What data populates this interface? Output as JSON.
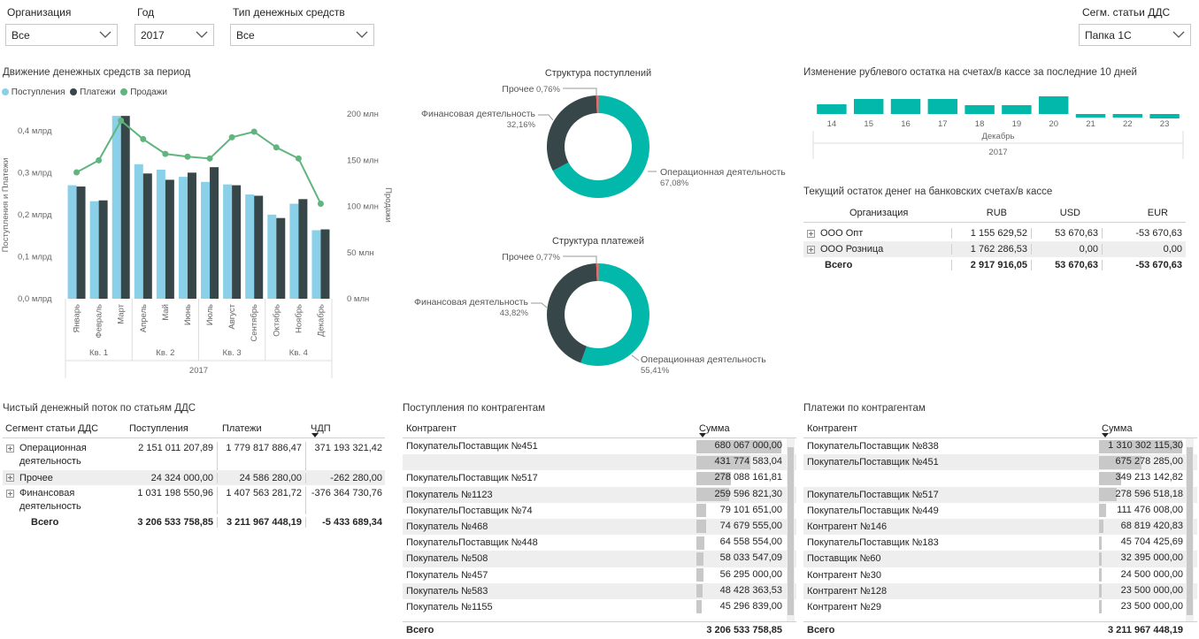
{
  "slicers": {
    "org": {
      "label": "Организация",
      "value": "Все"
    },
    "year": {
      "label": "Год",
      "value": "2017"
    },
    "cash_type": {
      "label": "Тип денежных средств",
      "value": "Все"
    },
    "segment": {
      "label": "Сегм. статьи ДДС",
      "value": "Папка 1С"
    }
  },
  "cashflow_chart": {
    "title": "Движение денежных средств за период",
    "legend": [
      "Поступления",
      "Платежи",
      "Продажи"
    ],
    "colors": {
      "inflow": "#89d0e8",
      "outflow": "#374649",
      "sales": "#5fb57d"
    },
    "y_left_label": "Поступления и Платежи",
    "y_right_label": "Продажи",
    "y_left_ticks": [
      "0,4 млрд",
      "0,3 млрд",
      "0,2 млрд",
      "0,1 млрд",
      "0,0 млрд"
    ],
    "y_right_ticks": [
      "200 млн",
      "150 млн",
      "100 млн",
      "50 млн",
      "0 млн"
    ],
    "quarters": [
      "Кв. 1",
      "Кв. 2",
      "Кв. 3",
      "Кв. 4"
    ],
    "year": "2017"
  },
  "chart_data": [
    {
      "type": "bar",
      "title": "Движение денежных средств за период",
      "categories": [
        "Январь",
        "Февраль",
        "Март",
        "Апрель",
        "Май",
        "Июнь",
        "Июль",
        "Август",
        "Сентябрь",
        "Октябрь",
        "Ноябрь",
        "Декабрь"
      ],
      "series": [
        {
          "name": "Поступления",
          "axis": "left",
          "unit": "млрд",
          "values": [
            0.27,
            0.232,
            0.435,
            0.32,
            0.307,
            0.29,
            0.278,
            0.272,
            0.248,
            0.2,
            0.226,
            0.163
          ]
        },
        {
          "name": "Платежи",
          "axis": "left",
          "unit": "млрд",
          "values": [
            0.267,
            0.234,
            0.435,
            0.298,
            0.283,
            0.3,
            0.313,
            0.27,
            0.245,
            0.192,
            0.237,
            0.165
          ]
        },
        {
          "name": "Продажи",
          "type": "line",
          "axis": "right",
          "unit": "млн",
          "values": [
            137,
            150,
            193,
            173,
            157,
            154,
            152,
            175,
            181,
            164,
            152,
            103
          ]
        }
      ],
      "ylabel": "Поступления и Платежи",
      "y2label": "Продажи",
      "ylim": [
        0,
        0.45
      ],
      "y2lim": [
        0,
        205
      ]
    },
    {
      "type": "pie",
      "title": "Структура поступлений",
      "labels": [
        "Операционная деятельность",
        "Финансовая деятельность",
        "Прочее"
      ],
      "percent_labels": [
        "67,08%",
        "32,16%",
        "0,76%"
      ],
      "values": [
        67.08,
        32.16,
        0.76
      ],
      "colors": [
        "#01b8aa",
        "#374649",
        "#fd625e"
      ]
    },
    {
      "type": "pie",
      "title": "Структура платежей",
      "labels": [
        "Операционная деятельность",
        "Финансовая деятельность",
        "Прочее"
      ],
      "percent_labels": [
        "55,41%",
        "43,82%",
        "0,77%"
      ],
      "values": [
        55.41,
        43.82,
        0.77
      ],
      "colors": [
        "#01b8aa",
        "#374649",
        "#fd625e"
      ]
    },
    {
      "type": "bar",
      "title": "Изменение рублевого остатка на счетах/в кассе за последние 10 дней",
      "categories": [
        "14",
        "15",
        "16",
        "17",
        "18",
        "19",
        "20",
        "21",
        "22",
        "23"
      ],
      "values": [
        0.55,
        0.85,
        0.85,
        0.85,
        0.5,
        0.5,
        1.0,
        -0.2,
        -0.2,
        -0.25
      ],
      "xlabel_month": "Декабрь",
      "xlabel_year": "2017",
      "color": "#01b8aa"
    }
  ],
  "balances": {
    "title": "Текущий остаток денег на банковских счетах/в кассе",
    "headers": [
      "Организация",
      "RUB",
      "USD",
      "EUR"
    ],
    "rows": [
      {
        "name": "ООО Опт",
        "rub": "1 155 629,52",
        "usd": "53 670,63",
        "eur": "-53 670,63"
      },
      {
        "name": "ООО Розница",
        "rub": "1 762 286,53",
        "usd": "0,00",
        "eur": "0,00"
      }
    ],
    "total": {
      "name": "Всего",
      "rub": "2 917 916,05",
      "usd": "53 670,63",
      "eur": "-53 670,63"
    }
  },
  "net_flow": {
    "title": "Чистый денежный поток по статьям ДДС",
    "headers": [
      "Сегмент статьи ДДС",
      "Поступления",
      "Платежи",
      "ЧДП"
    ],
    "rows": [
      {
        "name1": "Операционная",
        "name2": "деятельность",
        "in": "2 151 011 207,89",
        "out": "1 779 817 886,47",
        "net": "371 193 321,42"
      },
      {
        "name1": "Прочее",
        "name2": "",
        "in": "24 324 000,00",
        "out": "24 586 280,00",
        "net": "-262 280,00"
      },
      {
        "name1": "Финансовая",
        "name2": "деятельность",
        "in": "1 031 198 550,96",
        "out": "1 407 563 281,72",
        "net": "-376 364 730,76"
      }
    ],
    "total": {
      "name": "Всего",
      "in": "3 206 533 758,85",
      "out": "3 211 967 448,19",
      "net": "-5 433 689,34"
    }
  },
  "receipts": {
    "title": "Поступления по контрагентам",
    "headers": [
      "Контрагент",
      "Сумма"
    ],
    "rows": [
      {
        "name": "ПокупательПоставщик №451",
        "sum": "680 067 000,00",
        "frac": 1.0
      },
      {
        "name": "",
        "sum": "431 774 583,04",
        "frac": 0.635
      },
      {
        "name": "ПокупательПоставщик №517",
        "sum": "278 088 161,81",
        "frac": 0.409
      },
      {
        "name": "Покупатель №1123",
        "sum": "259 596 821,30",
        "frac": 0.382
      },
      {
        "name": "ПокупательПоставщик №74",
        "sum": "79 101 651,00",
        "frac": 0.116
      },
      {
        "name": "Покупатель №468",
        "sum": "74 679 555,00",
        "frac": 0.11
      },
      {
        "name": "ПокупательПоставщик №448",
        "sum": "64 558 554,00",
        "frac": 0.095
      },
      {
        "name": "Покупатель №508",
        "sum": "58 033 547,09",
        "frac": 0.085
      },
      {
        "name": "Покупатель №457",
        "sum": "56 295 000,00",
        "frac": 0.083
      },
      {
        "name": "Покупатель №583",
        "sum": "48 428 363,53",
        "frac": 0.071
      },
      {
        "name": "Покупатель №1155",
        "sum": "45 296 839,00",
        "frac": 0.067
      }
    ],
    "total": {
      "name": "Всего",
      "sum": "3 206 533 758,85"
    }
  },
  "payments": {
    "title": "Платежи по контрагентам",
    "headers": [
      "Контрагент",
      "Сумма"
    ],
    "rows": [
      {
        "name": "ПокупательПоставщик №838",
        "sum": "1 310 302 115,30",
        "frac": 1.0
      },
      {
        "name": "ПокупательПоставщик №451",
        "sum": "675 278 285,00",
        "frac": 0.515
      },
      {
        "name": "",
        "sum": "349 213 142,82",
        "frac": 0.267
      },
      {
        "name": "ПокупательПоставщик №517",
        "sum": "278 596 518,18",
        "frac": 0.213
      },
      {
        "name": "ПокупательПоставщик №449",
        "sum": "111 476 008,00",
        "frac": 0.085
      },
      {
        "name": "Контрагент №146",
        "sum": "68 819 420,83",
        "frac": 0.053
      },
      {
        "name": "ПокупательПоставщик №183",
        "sum": "45 704 425,69",
        "frac": 0.035
      },
      {
        "name": "Поставщик №60",
        "sum": "32 395 000,00",
        "frac": 0.025
      },
      {
        "name": "Контрагент №30",
        "sum": "24 500 000,00",
        "frac": 0.019
      },
      {
        "name": "Контрагент №128",
        "sum": "23 500 000,00",
        "frac": 0.018
      },
      {
        "name": "Контрагент №29",
        "sum": "23 500 000,00",
        "frac": 0.018
      }
    ],
    "total": {
      "name": "Всего",
      "sum": "3 211 967 448,19"
    }
  }
}
